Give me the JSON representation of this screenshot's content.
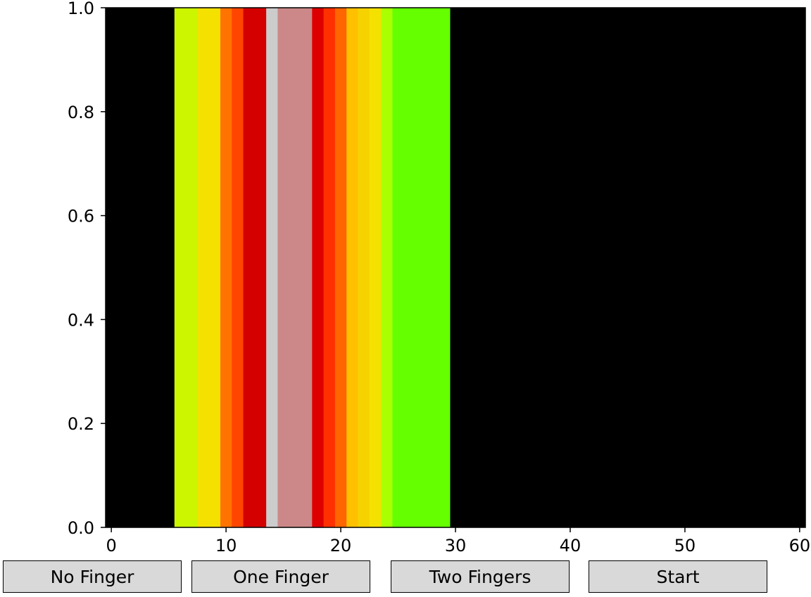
{
  "chart_data": {
    "type": "heatmap",
    "description_colors_only": true,
    "xlim": [
      -0.5,
      60.5
    ],
    "ylim": [
      0.0,
      1.0
    ],
    "xticks": [
      0,
      10,
      20,
      30,
      40,
      50,
      60
    ],
    "xtick_labels": [
      "0",
      "10",
      "20",
      "30",
      "40",
      "50",
      "60"
    ],
    "yticks": [
      0.0,
      0.2,
      0.4,
      0.6,
      0.8,
      1.0
    ],
    "ytick_labels": [
      "0.0",
      "0.2",
      "0.4",
      "0.6",
      "0.8",
      "1.0"
    ],
    "background_color": "#000000",
    "grid": false,
    "x": [
      6,
      7,
      8,
      9,
      10,
      11,
      12,
      13,
      14,
      15,
      16,
      17,
      18,
      19,
      20,
      21,
      22,
      23,
      24,
      25,
      26,
      27,
      28,
      29
    ],
    "colors": [
      "#ccf500",
      "#ccf500",
      "#f5e100",
      "#f5e100",
      "#ff7300",
      "#ff4500",
      "#d40000",
      "#d40000",
      "#cccccc",
      "#cc8888",
      "#cc8888",
      "#cc8888",
      "#dd0000",
      "#ff3000",
      "#ff6500",
      "#ffc000",
      "#f5d200",
      "#f5e100",
      "#aaff00",
      "#66ff00",
      "#66ff00",
      "#66ff00",
      "#66ff00",
      "#66ff00"
    ]
  },
  "buttons": {
    "no_finger": "No Finger",
    "one_finger": "One Finger",
    "two_fingers": "Two Fingers",
    "start": "Start"
  }
}
